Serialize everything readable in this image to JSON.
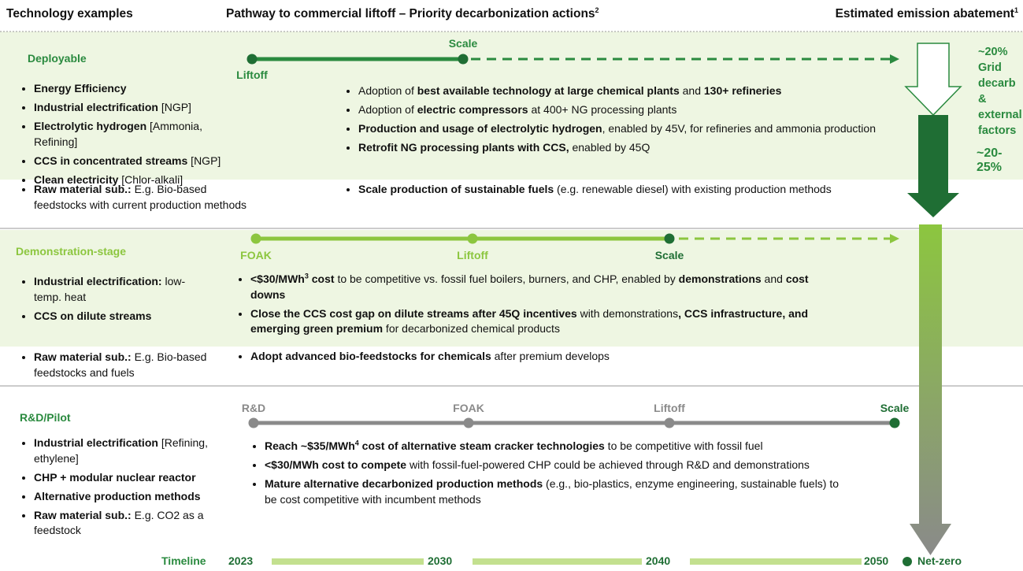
{
  "header": {
    "technology": "Technology examples",
    "pathway": {
      "text": "Pathway to commercial liftoff – Priority decarbonization actions",
      "sup": "2"
    },
    "abatement": {
      "text": "Estimated emission abatement",
      "sup": "1"
    }
  },
  "sections": [
    {
      "title": "Deployable",
      "milestones": [
        "Liftoff",
        "Scale"
      ],
      "technologies": {
        "primary": [
          [
            {
              "t": "Energy Efficiency",
              "b": true
            }
          ],
          [
            {
              "t": "Industrial electrification",
              "b": true
            },
            {
              "t": " [NGP]"
            }
          ],
          [
            {
              "t": "Electrolytic hydrogen",
              "b": true
            },
            {
              "t": " [Ammonia, Refining]"
            }
          ],
          [
            {
              "t": "CCS in concentrated streams",
              "b": true
            },
            {
              "t": " [NGP]"
            }
          ],
          [
            {
              "t": "Clean electricity",
              "b": true
            },
            {
              "t": " [Chlor-alkali]"
            }
          ]
        ],
        "secondary": [
          [
            {
              "t": "Raw material sub.:",
              "b": true
            },
            {
              "t": " E.g. Bio-based feedstocks with current production methods"
            }
          ]
        ]
      },
      "actions": {
        "primary": [
          [
            {
              "t": "Adoption of "
            },
            {
              "t": "best available technology at large chemical plants",
              "b": true
            },
            {
              "t": " and "
            },
            {
              "t": "130+ refineries",
              "b": true
            }
          ],
          [
            {
              "t": "Adoption of "
            },
            {
              "t": "electric compressors",
              "b": true
            },
            {
              "t": " at 400+ NG processing plants"
            }
          ],
          [
            {
              "t": "Production and usage of electrolytic hydrogen",
              "b": true
            },
            {
              "t": ", enabled by 45V, for refineries and ammonia production"
            }
          ],
          [
            {
              "t": "Retrofit NG processing plants with CCS,",
              "b": true
            },
            {
              "t": " enabled by 45Q"
            }
          ]
        ],
        "secondary": [
          [
            {
              "t": "Scale production of sustainable fuels",
              "b": true
            },
            {
              "t": " (e.g. renewable diesel) with existing production methods"
            }
          ]
        ]
      }
    },
    {
      "title": "Demonstration-stage",
      "milestones": [
        "FOAK",
        "Liftoff",
        "Scale"
      ],
      "technologies": {
        "primary": [
          [
            {
              "t": "Industrial electrification:",
              "b": true
            },
            {
              "t": " low-temp. heat"
            }
          ],
          [
            {
              "t": "CCS on dilute streams",
              "b": true
            }
          ]
        ],
        "secondary": [
          [
            {
              "t": "Raw material sub.:",
              "b": true
            },
            {
              "t": " E.g. Bio-based feedstocks and fuels"
            }
          ]
        ]
      },
      "actions": {
        "primary": [
          [
            {
              "t": "<$30/MWh",
              "b": true
            },
            {
              "t": "3",
              "b": true,
              "sup": true
            },
            {
              "t": " cost",
              "b": true
            },
            {
              "t": " to be competitive vs. fossil fuel boilers, burners, and CHP, enabled by "
            },
            {
              "t": "demonstrations",
              "b": true
            },
            {
              "t": " and "
            },
            {
              "t": "cost downs",
              "b": true
            }
          ],
          [
            {
              "t": "Close the CCS cost gap on dilute streams after 45Q incentives",
              "b": true
            },
            {
              "t": " with demonstrations"
            },
            {
              "t": ", CCS infrastructure, and emerging green premium",
              "b": true
            },
            {
              "t": " for decarbonized chemical products"
            }
          ]
        ],
        "secondary": [
          [
            {
              "t": "Adopt advanced bio-feedstocks for chemicals",
              "b": true
            },
            {
              "t": " after premium develops"
            }
          ]
        ]
      }
    },
    {
      "title": "R&D/Pilot",
      "milestones": [
        "R&D",
        "FOAK",
        "Liftoff",
        "Scale"
      ],
      "technologies": {
        "primary": [
          [
            {
              "t": "Industrial electrification",
              "b": true
            },
            {
              "t": " [Refining, ethylene]"
            }
          ],
          [
            {
              "t": "CHP + modular nuclear reactor",
              "b": true
            }
          ],
          [
            {
              "t": "Alternative production methods",
              "b": true
            }
          ],
          [
            {
              "t": "Raw material sub.:",
              "b": true
            },
            {
              "t": " E.g. CO2 as a feedstock"
            }
          ]
        ]
      },
      "actions": {
        "primary": [
          [
            {
              "t": "Reach ~$35/MWh",
              "b": true
            },
            {
              "t": "4",
              "b": true,
              "sup": true
            },
            {
              "t": " cost of alternative steam cracker technologies",
              "b": true
            },
            {
              "t": " to be competitive with fossil fuel"
            }
          ],
          [
            {
              "t": "<$30/MWh cost to compete",
              "b": true
            },
            {
              "t": " with fossil-fuel-powered CHP could be achieved through R&D and demonstrations"
            }
          ],
          [
            {
              "t": "Mature alternative decarbonized production methods",
              "b": true
            },
            {
              "t": " (e.g., bio-plastics, enzyme engineering, sustainable fuels) to be cost competitive with incumbent methods"
            }
          ]
        ]
      }
    }
  ],
  "abatement": {
    "external": "~20% Grid decarb & external factors",
    "range": "~20-25%"
  },
  "timeline": {
    "label": "Timeline",
    "years": [
      "2023",
      "2030",
      "2040",
      "2050"
    ],
    "end": "Net-zero"
  }
}
